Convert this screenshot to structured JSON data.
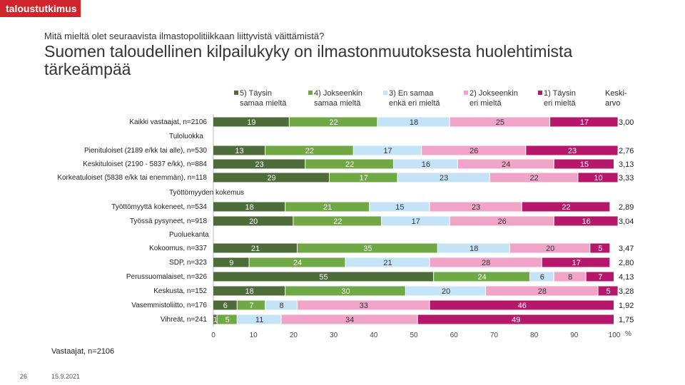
{
  "header": {
    "logo": "taloustutkimus",
    "question": "Mitä mieltä olet seuraavista ilmastopolitiikkaan liittyvistä väittämistä?",
    "title": "Suomen taloudellinen kilpailukyky on ilmastonmuutoksesta huolehtimista tärkeämpää"
  },
  "legend": {
    "items": [
      {
        "line1": "5) Täysin",
        "line2": "samaa mieltä",
        "color": "#4e6b3a"
      },
      {
        "line1": "4) Jokseenkin",
        "line2": "samaa mieltä",
        "color": "#70a845"
      },
      {
        "line1": "3) En samaa",
        "line2": "enkä eri mieltä",
        "color": "#c5e3f6"
      },
      {
        "line1": "2) Jokseenkin",
        "line2": "eri mieltä",
        "color": "#f0a5c8"
      },
      {
        "line1": "1) Täysin",
        "line2": "eri mieltä",
        "color": "#b5176b"
      }
    ],
    "mean_header_line1": "Keski-",
    "mean_header_line2": "arvo"
  },
  "chart_data": {
    "type": "bar",
    "orientation": "horizontal",
    "stacked": true,
    "xlim": [
      0,
      100
    ],
    "xticks": [
      0,
      10,
      20,
      30,
      40,
      50,
      60,
      70,
      80,
      90,
      100
    ],
    "xunit": "%",
    "series_names": [
      "5) Täysin samaa mieltä",
      "4) Jokseenkin samaa mieltä",
      "3) En samaa enkä eri mieltä",
      "2) Jokseenkin eri mieltä",
      "1) Täysin eri mieltä"
    ],
    "rows": [
      {
        "label": "Kaikki vastaajat, n=2106",
        "values": [
          19,
          22,
          18,
          25,
          17
        ],
        "mean": "3,00"
      },
      {
        "group": "Tuloluokka"
      },
      {
        "label": "Pienituloiset (2189 e/kk tai alle), n=530",
        "values": [
          13,
          22,
          17,
          26,
          23
        ],
        "mean": "2,76"
      },
      {
        "label": "Keskituloiset (2190 - 5837 e/kk), n=884",
        "values": [
          23,
          22,
          16,
          24,
          15
        ],
        "mean": "3,13"
      },
      {
        "label": "Korkeatuloiset (5838 e/kk tai enemmän), n=118",
        "values": [
          29,
          17,
          23,
          22,
          10
        ],
        "mean": "3,33"
      },
      {
        "group": "Työttömyyden kokemus"
      },
      {
        "label": "Työttömyyttä kokeneet, n=534",
        "values": [
          18,
          21,
          15,
          23,
          22
        ],
        "mean": "2,89"
      },
      {
        "label": "Työssä pysyneet, n=918",
        "values": [
          20,
          22,
          17,
          26,
          16
        ],
        "mean": "3,04"
      },
      {
        "group": "Puoluekanta"
      },
      {
        "label": "Kokoomus, n=337",
        "values": [
          21,
          35,
          18,
          20,
          5
        ],
        "mean": "3,47"
      },
      {
        "label": "SDP, n=323",
        "values": [
          9,
          24,
          21,
          28,
          17
        ],
        "mean": "2,80"
      },
      {
        "label": "Perussuomalaiset, n=326",
        "values": [
          55,
          24,
          6,
          8,
          7
        ],
        "mean": "4,13"
      },
      {
        "label": "Keskusta, n=152",
        "values": [
          18,
          30,
          20,
          28,
          5
        ],
        "mean": "3,28"
      },
      {
        "label": "Vasemmistoliitto, n=176",
        "values": [
          6,
          7,
          8,
          33,
          46
        ],
        "mean": "1,92"
      },
      {
        "label": "Vihreät, n=241",
        "values": [
          1,
          5,
          11,
          34,
          49
        ],
        "mean": "1,75"
      }
    ]
  },
  "footer": {
    "note": "Vastaajat, n=2106",
    "page": "26",
    "date": "15.9.2021"
  }
}
